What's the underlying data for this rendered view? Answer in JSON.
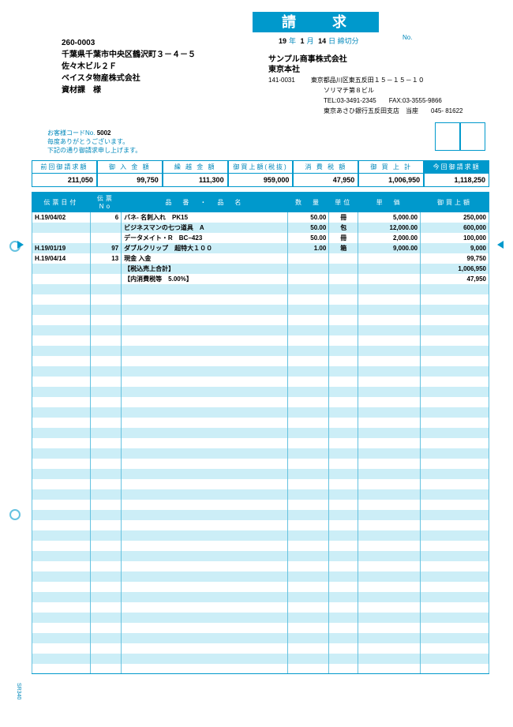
{
  "title": "請　求　書",
  "date": {
    "year": "19",
    "month": "1",
    "day": "14",
    "y_lbl": "年",
    "m_lbl": "月",
    "d_lbl": "日",
    "suffix": "締切分"
  },
  "no_label": "No.",
  "sender": {
    "postal": "260-0003",
    "addr": "千葉県千葉市中央区鶴沢町３－４－５",
    "bldg": "佐々木ビル２Ｆ",
    "company": "ベイスタ物産株式会社",
    "dept": "資材課　様"
  },
  "recipient": {
    "company": "サンプル商事株式会社",
    "branch": "東京本社",
    "postal": "141-0031",
    "addr": "東京都品川区東五反田１５－１５－１０",
    "bldg": "ソリマチ第８ビル",
    "tel": "TEL:03-3491-2345　　FAX:03-3555-9866",
    "bank": "東京あさひ銀行五反田支店　当座　　045- 81622"
  },
  "customer": {
    "code_lbl": "お客様コードNo.",
    "code": "5002",
    "msg1": "毎度ありがとうございます。",
    "msg2": "下記の通り御請求申し上げます。"
  },
  "summary": {
    "headers": [
      "前回御請求額",
      "御 入 金 額",
      "繰 越 金 額",
      "御買上額(税抜)",
      "消 費 税 額",
      "御 買 上 計",
      "今回御請求額"
    ],
    "values": [
      "211,050",
      "99,750",
      "111,300",
      "959,000",
      "47,950",
      "1,006,950",
      "1,118,250"
    ]
  },
  "table": {
    "headers": [
      "伝票日付",
      "伝票 No",
      "品　番　・　品　名",
      "数　量",
      "単位",
      "単　価",
      "御買上額"
    ],
    "rows": [
      {
        "date": "H.19/04/02",
        "no": "6",
        "name": "バネ- 名刺入れ　PK15",
        "qty": "50.00",
        "unit": "冊",
        "price": "5,000.00",
        "amt": "250,000"
      },
      {
        "date": "",
        "no": "",
        "name": "ビジネスマンの七つ道具　A",
        "qty": "50.00",
        "unit": "包",
        "price": "12,000.00",
        "amt": "600,000"
      },
      {
        "date": "",
        "no": "",
        "name": "データメイト・R　BC−423",
        "qty": "50.00",
        "unit": "冊",
        "price": "2,000.00",
        "amt": "100,000"
      },
      {
        "date": "H.19/01/19",
        "no": "97",
        "name": "ダブルクリップ　超特大１００",
        "qty": "1.00",
        "unit": "箱",
        "price": "9,000.00",
        "amt": "9,000"
      },
      {
        "date": "H.19/04/14",
        "no": "13",
        "name": "現金 入金",
        "qty": "",
        "unit": "",
        "price": "",
        "amt": "99,750"
      },
      {
        "date": "",
        "no": "",
        "name": "【税込売上合計】",
        "qty": "",
        "unit": "",
        "price": "",
        "amt": "1,006,950"
      },
      {
        "date": "",
        "no": "",
        "name": "【内消費税等　5.00%】",
        "qty": "",
        "unit": "",
        "price": "",
        "amt": "47,950"
      }
    ],
    "empty_rows": 38
  },
  "side_code": "SR340"
}
